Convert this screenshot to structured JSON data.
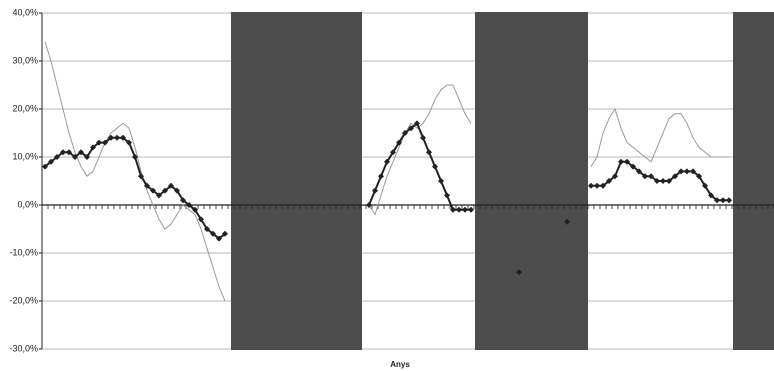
{
  "chart_data": {
    "type": "line",
    "x_label": "Anys",
    "categories": [
      null,
      null,
      null,
      null,
      null,
      null,
      null,
      null,
      null,
      null,
      null,
      null,
      null,
      null,
      null,
      null,
      null,
      null,
      null,
      null,
      null,
      null,
      null,
      null,
      null,
      null,
      null,
      null,
      null,
      null,
      null,
      null,
      null,
      null,
      null,
      null,
      null,
      null,
      null,
      null,
      null,
      null,
      null,
      null,
      null,
      null,
      null,
      null,
      null,
      null,
      null,
      null,
      null,
      null,
      null,
      null,
      null,
      null,
      null,
      null,
      null,
      null,
      null,
      null,
      null,
      null,
      null,
      null,
      null,
      null,
      null,
      null,
      null,
      null,
      null,
      null,
      null,
      null,
      null,
      null,
      null,
      null,
      null,
      null,
      null,
      null,
      null,
      null,
      null,
      null,
      null,
      null,
      null,
      null,
      null,
      null,
      null,
      null,
      null,
      null,
      null,
      null,
      null,
      null,
      null,
      null,
      null,
      null,
      null,
      null,
      null,
      null,
      null,
      null,
      null,
      null,
      null,
      null,
      null,
      null,
      null,
      null
    ],
    "series": [
      {
        "color": "#9a9a9a",
        "markers": false,
        "values": [
          34,
          30,
          25,
          20,
          15,
          11,
          8,
          6,
          7,
          10,
          13,
          15,
          16,
          17,
          16,
          12,
          7,
          3,
          0,
          -3,
          -5,
          -4,
          -2,
          0,
          -1,
          -2,
          -5,
          -9,
          -13,
          -17,
          -20,
          null,
          null,
          null,
          null,
          null,
          null,
          null,
          null,
          null,
          null,
          null,
          null,
          null,
          null,
          null,
          null,
          null,
          null,
          null,
          null,
          null,
          null,
          null,
          0,
          -2,
          2,
          6,
          9,
          12,
          15,
          17,
          16,
          17,
          19,
          22,
          24,
          25,
          25,
          22,
          19,
          17,
          null,
          null,
          null,
          null,
          null,
          null,
          null,
          null,
          null,
          null,
          null,
          null,
          null,
          null,
          null,
          null,
          null,
          null,
          null,
          8,
          10,
          15,
          18,
          20,
          16,
          13,
          12,
          11,
          10,
          9,
          12,
          15,
          18,
          19,
          19,
          17,
          14,
          12,
          11,
          10,
          10,
          10,
          10,
          null,
          null,
          null,
          null,
          null,
          null,
          null
        ]
      },
      {
        "color": "#222222",
        "markers": true,
        "values": [
          8,
          9,
          10,
          11,
          11,
          10,
          11,
          10,
          12,
          13,
          13,
          14,
          14,
          14,
          13,
          10,
          6,
          4,
          3,
          2,
          3,
          4,
          3,
          1,
          0,
          -1,
          -3,
          -5,
          -6,
          -7,
          -6,
          null,
          null,
          null,
          null,
          null,
          null,
          null,
          null,
          null,
          null,
          null,
          null,
          null,
          null,
          null,
          null,
          null,
          null,
          null,
          null,
          null,
          null,
          null,
          0,
          3,
          6,
          9,
          11,
          13,
          15,
          16,
          17,
          14,
          11,
          8,
          5,
          2,
          -1,
          -1,
          -1,
          -1,
          null,
          null,
          null,
          null,
          null,
          null,
          null,
          -14,
          null,
          null,
          null,
          null,
          null,
          null,
          null,
          -3.5,
          null,
          null,
          null,
          4,
          4,
          4,
          5,
          6,
          9,
          9,
          8,
          7,
          6,
          6,
          5,
          5,
          5,
          6,
          7,
          7,
          7,
          6,
          4,
          2,
          1,
          1,
          1,
          null,
          null,
          null,
          null,
          null,
          null,
          null
        ]
      }
    ],
    "ylim": [
      -30,
      40
    ],
    "yticks": [
      {
        "value": -30,
        "label": "-30,0%"
      },
      {
        "value": -20,
        "label": "-20,0%"
      },
      {
        "value": -10,
        "label": "-10,0%"
      },
      {
        "value": 0,
        "label": "0,0%"
      },
      {
        "value": 10,
        "label": "10,0%"
      },
      {
        "value": 20,
        "label": "20,0%"
      },
      {
        "value": 30,
        "label": "30,0%"
      },
      {
        "value": 40,
        "label": "40,0%"
      }
    ],
    "grid": true
  }
}
